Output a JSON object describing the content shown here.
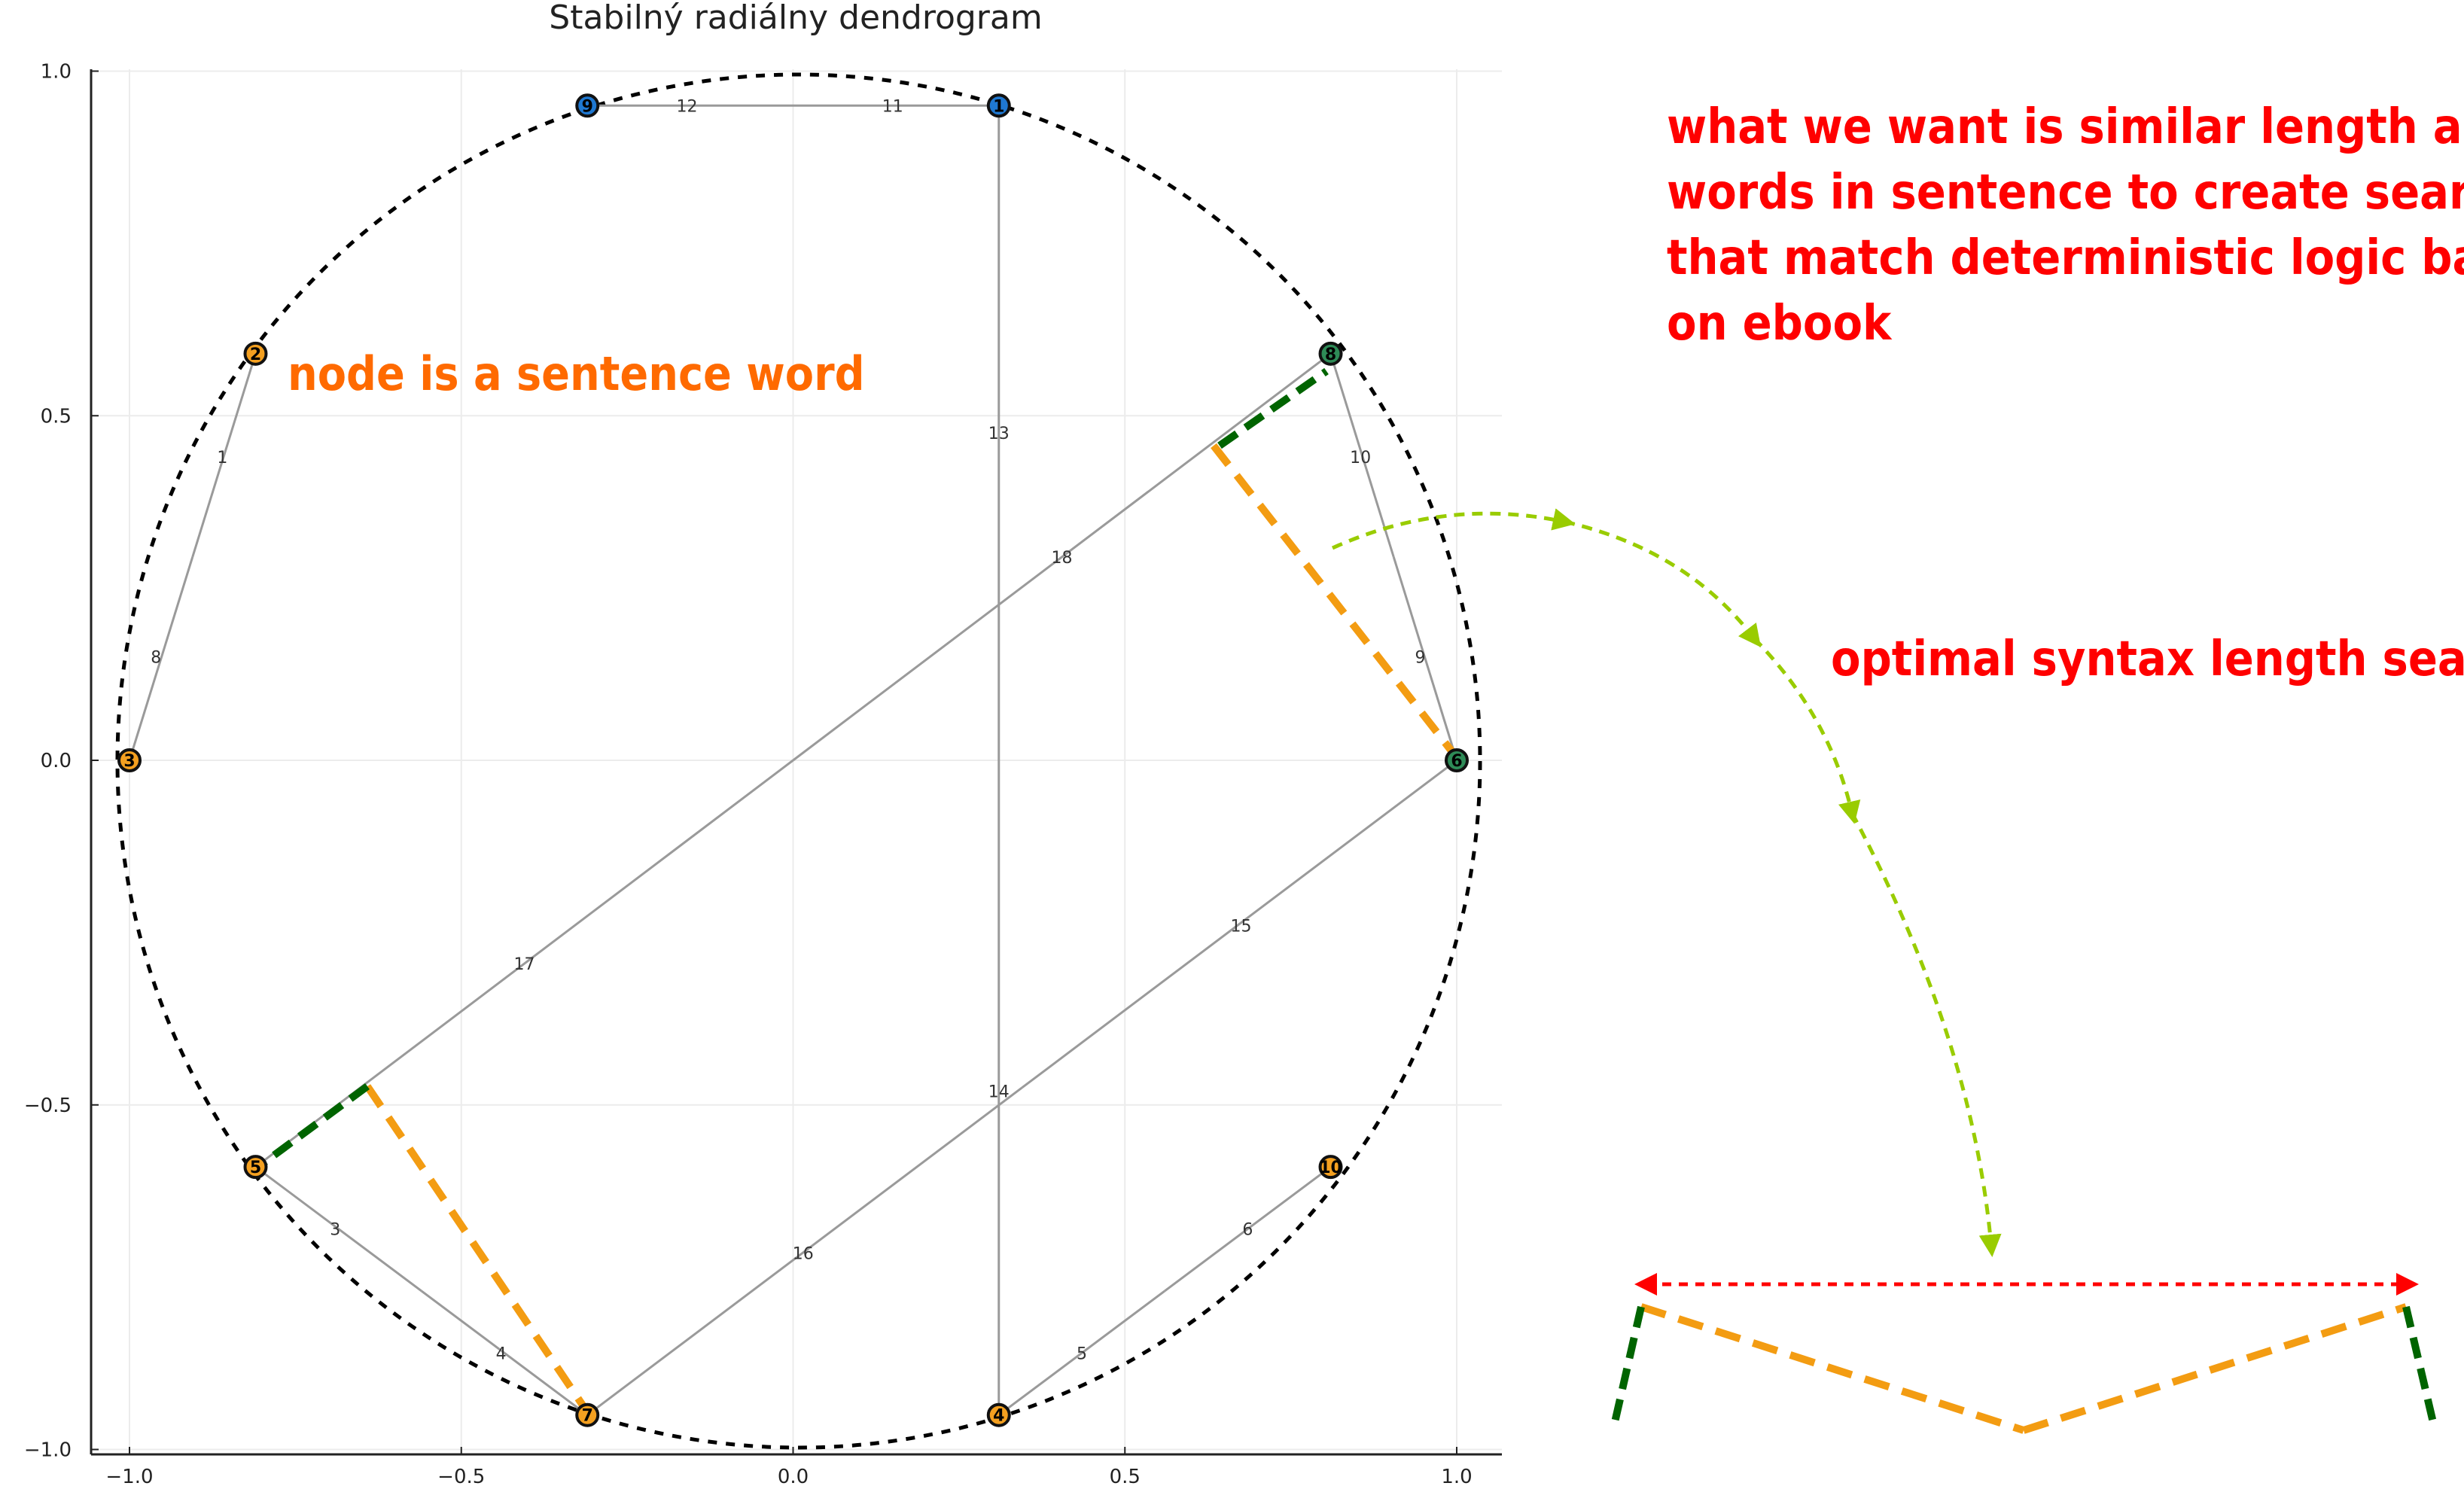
{
  "title": "Stabilný radiálny dendrogram",
  "x_ticks": [
    "−1.0",
    "−0.5",
    "0.0",
    "0.5",
    "1.0"
  ],
  "y_ticks": [
    "1.0",
    "0.5",
    "0.0",
    "−0.5",
    "−1.0"
  ],
  "chart_data": {
    "type": "radial dendrogram",
    "xlim": [
      -1.05,
      1.05
    ],
    "ylim": [
      -1.0,
      1.0
    ],
    "grid": true,
    "nodes": [
      {
        "id": "1",
        "x": 0.31,
        "y": 0.95,
        "color": "#1f78d1"
      },
      {
        "id": "2",
        "x": -0.81,
        "y": 0.59,
        "color": "#f4a020"
      },
      {
        "id": "3",
        "x": -1.0,
        "y": 0.0,
        "color": "#f4a020"
      },
      {
        "id": "4",
        "x": 0.31,
        "y": -0.95,
        "color": "#f4a020"
      },
      {
        "id": "5",
        "x": -0.81,
        "y": -0.59,
        "color": "#f4a020"
      },
      {
        "id": "6",
        "x": 1.0,
        "y": 0.0,
        "color": "#2e8b57"
      },
      {
        "id": "7",
        "x": -0.31,
        "y": -0.95,
        "color": "#f4a020"
      },
      {
        "id": "8",
        "x": 0.81,
        "y": 0.59,
        "color": "#2e8b57"
      },
      {
        "id": "9",
        "x": -0.31,
        "y": 0.95,
        "color": "#1f78d1"
      },
      {
        "id": "10",
        "x": 0.81,
        "y": -0.59,
        "color": "#f4a020"
      }
    ],
    "edges": [
      {
        "label": "1",
        "x1": -0.81,
        "y1": 0.59,
        "x2": -0.905,
        "y2": 0.295,
        "lx": -0.86,
        "ly": 0.44
      },
      {
        "label": "8",
        "x1": -0.905,
        "y1": 0.295,
        "x2": -1.0,
        "y2": 0.0,
        "lx": -0.96,
        "ly": 0.15
      },
      {
        "label": "12",
        "x1": -0.31,
        "y1": 0.95,
        "x2": 0.0,
        "y2": 0.95,
        "lx": -0.16,
        "ly": 0.95
      },
      {
        "label": "11",
        "x1": 0.0,
        "y1": 0.95,
        "x2": 0.31,
        "y2": 0.95,
        "lx": 0.15,
        "ly": 0.95
      },
      {
        "label": "13",
        "x1": 0.31,
        "y1": 0.95,
        "x2": 0.31,
        "y2": 0.0,
        "lx": 0.31,
        "ly": 0.475
      },
      {
        "label": "14",
        "x1": 0.31,
        "y1": 0.0,
        "x2": 0.31,
        "y2": -0.95,
        "lx": 0.31,
        "ly": -0.48
      },
      {
        "label": "10",
        "x1": 0.81,
        "y1": 0.59,
        "x2": 0.905,
        "y2": 0.295,
        "lx": 0.855,
        "ly": 0.44
      },
      {
        "label": "9",
        "x1": 0.905,
        "y1": 0.295,
        "x2": 1.0,
        "y2": 0.0,
        "lx": 0.945,
        "ly": 0.15
      },
      {
        "label": "18",
        "x1": 0.81,
        "y1": 0.59,
        "x2": 0.0,
        "y2": 0.0,
        "lx": 0.405,
        "ly": 0.295
      },
      {
        "label": "17",
        "x1": 0.0,
        "y1": 0.0,
        "x2": -0.81,
        "y2": -0.59,
        "lx": -0.405,
        "ly": -0.295
      },
      {
        "label": "15",
        "x1": 1.0,
        "y1": 0.0,
        "x2": 0.345,
        "y2": -0.475,
        "lx": 0.675,
        "ly": -0.24
      },
      {
        "label": "16",
        "x1": 0.345,
        "y1": -0.475,
        "x2": -0.31,
        "y2": -0.95,
        "lx": 0.015,
        "ly": -0.715
      },
      {
        "label": "3",
        "x1": -0.81,
        "y1": -0.59,
        "x2": -0.56,
        "y2": -0.77,
        "lx": -0.69,
        "ly": -0.68
      },
      {
        "label": "4",
        "x1": -0.56,
        "y1": -0.77,
        "x2": -0.31,
        "y2": -0.95,
        "lx": -0.44,
        "ly": -0.86
      },
      {
        "label": "6",
        "x1": 0.81,
        "y1": -0.59,
        "x2": 0.56,
        "y2": -0.77,
        "lx": 0.685,
        "ly": -0.68
      },
      {
        "label": "5",
        "x1": 0.56,
        "y1": -0.77,
        "x2": 0.31,
        "y2": -0.95,
        "lx": 0.435,
        "ly": -0.86
      }
    ]
  },
  "annotations": {
    "node_note": "node is a sentence word",
    "goal_lines": [
      "what we want is similar length among",
      "words in sentence to create searches",
      "that match deterministic logic based",
      "on ebook"
    ],
    "search_note": "optimal syntax length searching"
  },
  "colors": {
    "goal_text": "#ff0000",
    "node_note": "#ff6a00",
    "search_note": "#ff0000",
    "orange_dash": "#f39c12",
    "green_dash": "#006400",
    "arrow_lime": "#99cc00",
    "arrow_red": "#ff0000"
  }
}
